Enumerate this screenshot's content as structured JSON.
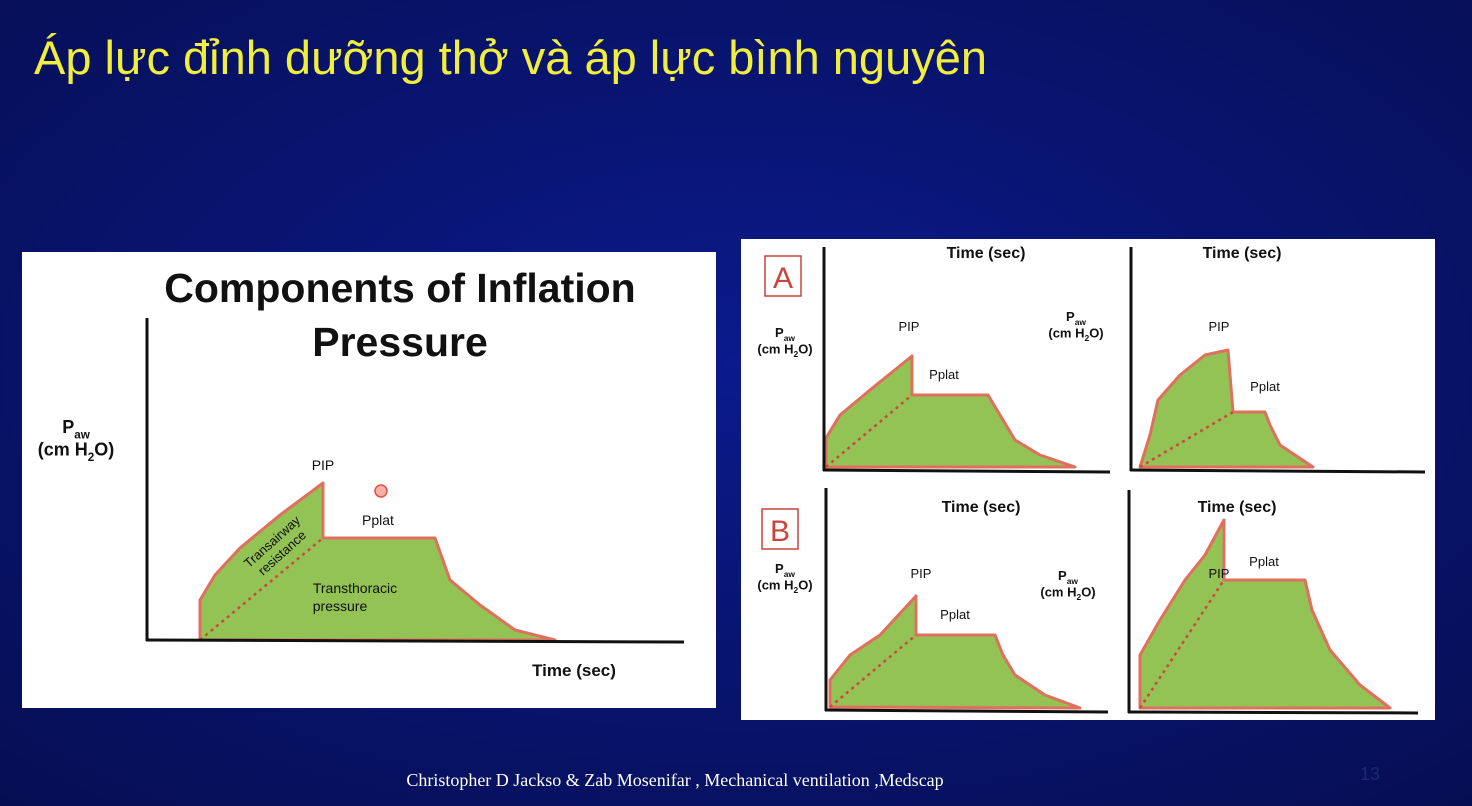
{
  "title": "Áp lực đỉnh dưỡng thở và áp lực bình nguyên",
  "left_panel": {
    "title_lines": [
      "Components of Inflation",
      "Pressure"
    ],
    "y_label": {
      "symbol": [
        "P",
        "aw"
      ],
      "unit": [
        "(cm H",
        "2",
        "O)"
      ]
    },
    "pip": "PIP",
    "pplat": "Pplat",
    "resistance_lines": [
      "Transairway",
      "resistance"
    ],
    "thoracic_lines": [
      "Transthoracic",
      "pressure"
    ],
    "x_label": "Time (sec)"
  },
  "right_panel": {
    "rows": [
      {
        "letter": "A",
        "charts": [
          {
            "x_label": "Time (sec)",
            "y_label": {
              "symbol": [
                "P",
                "aw"
              ],
              "unit": [
                "(cm H",
                "2",
                "O)"
              ]
            },
            "pip": "PIP",
            "pplat": "Pplat"
          },
          {
            "x_label": "Time (sec)",
            "y_label": {
              "symbol": [
                "P",
                "aw"
              ],
              "unit": [
                "(cm H",
                "2",
                "O)"
              ]
            },
            "pip": "PIP",
            "pplat": "Pplat"
          }
        ]
      },
      {
        "letter": "B",
        "charts": [
          {
            "x_label": "Time (sec)",
            "y_label": {
              "symbol": [
                "P",
                "aw"
              ],
              "unit": [
                "(cm H",
                "2",
                "O)"
              ]
            },
            "pip": "PIP",
            "pplat": "Pplat"
          },
          {
            "x_label": "Time (sec)",
            "y_label": {
              "symbol": [
                "P",
                "aw"
              ],
              "unit": [
                "(cm H",
                "2",
                "O)"
              ]
            },
            "pip": "PIP",
            "pplat": "Pplat"
          }
        ]
      }
    ]
  },
  "citation": "Christopher D Jackso & Zab Mosenifar , Mechanical ventilation ,Medscap",
  "slide_number": "13"
}
